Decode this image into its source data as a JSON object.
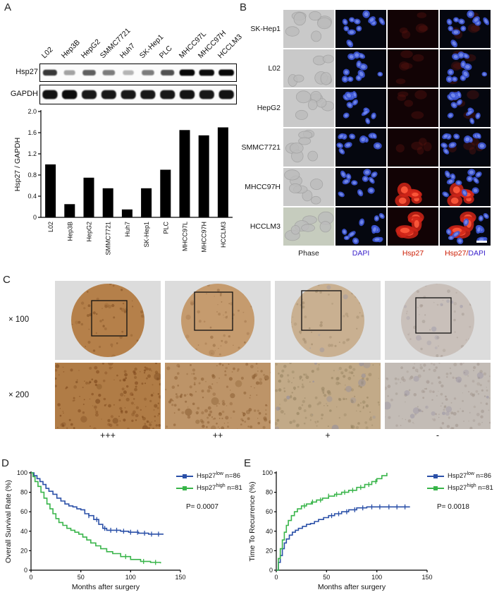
{
  "panel_labels": {
    "a": "A",
    "b": "B",
    "c": "C",
    "d": "D",
    "e": "E"
  },
  "panel_a": {
    "lanes": [
      "L02",
      "Hep3B",
      "HepG2",
      "SMMC7721",
      "Huh7",
      "SK-Hep1",
      "PLC",
      "MHCC97L",
      "MHCC97H",
      "HCCLM3"
    ],
    "blot_rows": [
      {
        "label": "Hsp27",
        "intensities": [
          0.78,
          0.35,
          0.62,
          0.5,
          0.28,
          0.5,
          0.68,
          0.97,
          0.95,
          0.97
        ]
      },
      {
        "label": "GAPDH",
        "intensities": [
          0.92,
          0.95,
          0.9,
          0.9,
          0.9,
          0.9,
          0.9,
          0.92,
          0.9,
          0.92
        ]
      }
    ]
  },
  "panel_b": {
    "rows": [
      {
        "label": "SK-Hep1",
        "hsp27": 0.15
      },
      {
        "label": "L02",
        "hsp27": 0.15
      },
      {
        "label": "HepG2",
        "hsp27": 0.2
      },
      {
        "label": "SMMC7721",
        "hsp27": 0.15
      },
      {
        "label": "MHCC97H",
        "hsp27": 0.95
      },
      {
        "label": "HCCLM3",
        "hsp27": 0.9
      }
    ],
    "columns": [
      {
        "label": "Phase",
        "color": "#1a1a1a"
      },
      {
        "label": "DAPI",
        "color": "#3a22cc"
      },
      {
        "label": "Hsp27",
        "color": "#cc1a00"
      },
      {
        "label": "Hsp27/DAPI",
        "parts": [
          {
            "text": "Hsp27",
            "color": "#cc1a00"
          },
          {
            "text": "/",
            "color": "#cc1a00"
          },
          {
            "text": "DAPI",
            "color": "#3a22cc"
          }
        ]
      }
    ]
  },
  "panel_c": {
    "mag_labels": [
      "× 100",
      "× 200"
    ],
    "grades": [
      "+++",
      "++",
      "+",
      "-"
    ],
    "colors_row1": [
      "#b5804a",
      "#c59b6e",
      "#c9b091",
      "#c9c0ba"
    ],
    "colors_row2": [
      "#b07c46",
      "#bd9468",
      "#c2aa88",
      "#c3bcb6"
    ],
    "speckle_row1": [
      "#7c4a20",
      "#90653c",
      "#9b8566",
      "#a49890"
    ],
    "blob_row1": [
      "#8d5a2a",
      "#a3744a",
      "#8f8fa8",
      "#9793a6"
    ],
    "speckle_row2": [
      "#7a4418",
      "#8a5c30",
      "#93805e",
      "#a0948c"
    ],
    "blob_row2": [
      "#6e3c14",
      "#7f5226",
      "#8888a4",
      "#908aa0"
    ]
  },
  "chart_data": [
    {
      "type": "bar",
      "title": "",
      "xlabel": "",
      "ylabel": "Hsp27 / GAPDH",
      "ylim": [
        0,
        2.0
      ],
      "yticks": [
        0,
        0.4,
        0.8,
        1.2,
        1.6,
        2.0
      ],
      "categories": [
        "L02",
        "Hep3B",
        "HepG2",
        "SMMC7721",
        "Huh7",
        "SK-Hep1",
        "PLC",
        "MHCC97L",
        "MHCC97H",
        "HCCLM3"
      ],
      "values": [
        1.0,
        0.25,
        0.75,
        0.55,
        0.15,
        0.55,
        0.9,
        1.65,
        1.55,
        1.7
      ],
      "bar_color": "#000000",
      "grid": false
    },
    {
      "type": "line",
      "subtype": "kaplan-meier",
      "xlabel": "Months after surgery",
      "ylabel": "Overall Survival Rate (%)",
      "xlim": [
        0,
        150
      ],
      "ylim": [
        0,
        100
      ],
      "xticks": [
        0,
        50,
        100,
        150
      ],
      "yticks": [
        0,
        20,
        40,
        60,
        80,
        100
      ],
      "p_value": "P= 0.0007",
      "legend_position": "upper right",
      "series": [
        {
          "name": "Hsp27low n=86",
          "label_base": "Hsp27",
          "label_sup": "low",
          "label_n": "n=86",
          "color": "#2b50a8",
          "points": [
            [
              0,
              100
            ],
            [
              3,
              97
            ],
            [
              6,
              94
            ],
            [
              9,
              91
            ],
            [
              12,
              88
            ],
            [
              15,
              84
            ],
            [
              18,
              81
            ],
            [
              22,
              78
            ],
            [
              26,
              74
            ],
            [
              30,
              71
            ],
            [
              34,
              68
            ],
            [
              38,
              66
            ],
            [
              42,
              65
            ],
            [
              46,
              63
            ],
            [
              50,
              62
            ],
            [
              54,
              58
            ],
            [
              58,
              56
            ],
            [
              63,
              52
            ],
            [
              68,
              47
            ],
            [
              72,
              43
            ],
            [
              76,
              41
            ],
            [
              82,
              41
            ],
            [
              90,
              40
            ],
            [
              98,
              39
            ],
            [
              108,
              38
            ],
            [
              118,
              37
            ],
            [
              133,
              37
            ]
          ],
          "censors": [
            58,
            66,
            74,
            80,
            86,
            93,
            100,
            107,
            114,
            121,
            128
          ]
        },
        {
          "name": "Hsp27high n=81",
          "label_base": "Hsp27",
          "label_sup": "high",
          "label_n": "n=81",
          "color": "#39b54a",
          "points": [
            [
              0,
              100
            ],
            [
              2,
              96
            ],
            [
              4,
              91
            ],
            [
              7,
              86
            ],
            [
              10,
              80
            ],
            [
              13,
              74
            ],
            [
              16,
              68
            ],
            [
              19,
              63
            ],
            [
              22,
              58
            ],
            [
              25,
              53
            ],
            [
              28,
              49
            ],
            [
              32,
              46
            ],
            [
              36,
              43
            ],
            [
              40,
              41
            ],
            [
              44,
              39
            ],
            [
              48,
              37
            ],
            [
              52,
              34
            ],
            [
              56,
              31
            ],
            [
              60,
              28
            ],
            [
              65,
              25
            ],
            [
              70,
              22
            ],
            [
              76,
              19
            ],
            [
              82,
              17
            ],
            [
              90,
              14
            ],
            [
              100,
              11
            ],
            [
              110,
              9
            ],
            [
              120,
              8
            ],
            [
              130,
              7
            ]
          ],
          "censors": [
            95,
            113,
            125
          ]
        }
      ]
    },
    {
      "type": "line",
      "subtype": "kaplan-meier",
      "xlabel": "Months after surgery",
      "ylabel": "Time To Recurrence (%)",
      "xlim": [
        0,
        150
      ],
      "ylim": [
        0,
        100
      ],
      "xticks": [
        0,
        50,
        100,
        150
      ],
      "yticks": [
        0,
        20,
        40,
        60,
        80,
        100
      ],
      "p_value": "P= 0.0018",
      "legend_position": "upper right",
      "series": [
        {
          "name": "Hsp27low n=86",
          "label_base": "Hsp27",
          "label_sup": "low",
          "label_n": "n=86",
          "color": "#2b50a8",
          "points": [
            [
              0,
              0
            ],
            [
              2,
              8
            ],
            [
              4,
              15
            ],
            [
              6,
              22
            ],
            [
              8,
              28
            ],
            [
              10,
              32
            ],
            [
              13,
              36
            ],
            [
              16,
              39
            ],
            [
              19,
              41
            ],
            [
              22,
              43
            ],
            [
              26,
              45
            ],
            [
              30,
              47
            ],
            [
              34,
              48
            ],
            [
              38,
              50
            ],
            [
              42,
              52
            ],
            [
              47,
              54
            ],
            [
              52,
              56
            ],
            [
              58,
              58
            ],
            [
              65,
              60
            ],
            [
              72,
              62
            ],
            [
              80,
              64
            ],
            [
              90,
              65
            ],
            [
              133,
              65
            ]
          ],
          "censors": [
            55,
            62,
            70,
            78,
            86,
            95,
            103,
            112,
            120,
            128
          ]
        },
        {
          "name": "Hsp27high n=81",
          "label_base": "Hsp27",
          "label_sup": "high",
          "label_n": "n=81",
          "color": "#39b54a",
          "points": [
            [
              0,
              0
            ],
            [
              2,
              12
            ],
            [
              4,
              22
            ],
            [
              6,
              31
            ],
            [
              8,
              39
            ],
            [
              10,
              46
            ],
            [
              12,
              51
            ],
            [
              15,
              56
            ],
            [
              18,
              60
            ],
            [
              21,
              63
            ],
            [
              25,
              66
            ],
            [
              30,
              68
            ],
            [
              35,
              70
            ],
            [
              40,
              72
            ],
            [
              46,
              74
            ],
            [
              52,
              76
            ],
            [
              58,
              78
            ],
            [
              65,
              80
            ],
            [
              72,
              82
            ],
            [
              80,
              85
            ],
            [
              88,
              88
            ],
            [
              95,
              91
            ],
            [
              100,
              94
            ],
            [
              105,
              97
            ],
            [
              110,
              100
            ]
          ],
          "censors": [
            28,
            36,
            44,
            52,
            60,
            68,
            76,
            84,
            92,
            99
          ]
        }
      ]
    }
  ]
}
